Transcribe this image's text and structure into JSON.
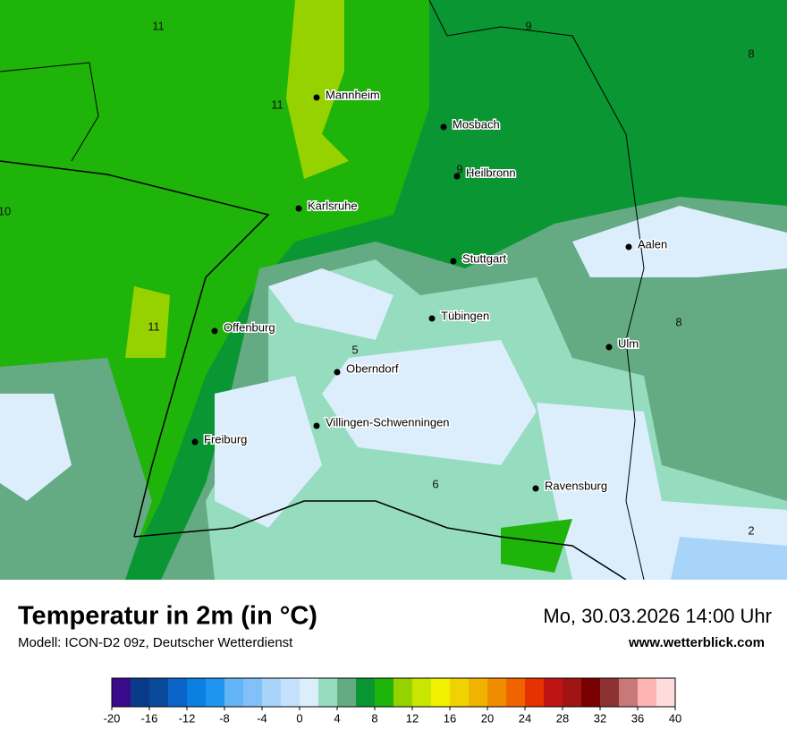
{
  "header": {
    "title": "Temperatur in 2m (in °C)",
    "subtitle": "Modell: ICON-D2 09z, Deutscher Wetterdienst",
    "datetime": "Mo, 30.03.2026 14:00 Uhr",
    "website": "www.wetterblick.com"
  },
  "map": {
    "cities": [
      "Mannheim",
      "Mosbach",
      "Heilbronn",
      "Karlsruhe",
      "Stuttgart",
      "Aalen",
      "Tübingen",
      "Offenburg",
      "Ulm",
      "Oberndorf",
      "Villingen-Schwenningen",
      "Freiburg",
      "Ravensburg"
    ],
    "contour_labels": [
      11,
      9,
      8,
      11,
      9,
      10,
      11,
      8,
      5,
      6,
      2
    ]
  },
  "colorbar": {
    "range": [
      -20,
      40
    ],
    "ticks": [
      -20,
      -16,
      -12,
      -8,
      -4,
      0,
      4,
      8,
      12,
      16,
      20,
      24,
      28,
      32,
      36,
      40
    ],
    "colors": [
      "#3a0a8a",
      "#0a3a8a",
      "#0a4a9a",
      "#0a64c8",
      "#0a80e0",
      "#1e96f0",
      "#64b4f8",
      "#82c0f8",
      "#a8d4fa",
      "#c4e0fc",
      "#dceefc",
      "#96dcbe",
      "#64aa82",
      "#0a9632",
      "#1eb40a",
      "#96d200",
      "#c8e600",
      "#f0f000",
      "#f0d200",
      "#f0b400",
      "#f08c00",
      "#f06400",
      "#e63200",
      "#be1414",
      "#a01414",
      "#780000",
      "#8c3232",
      "#c87878",
      "#ffb4b4",
      "#ffdcdc"
    ]
  }
}
